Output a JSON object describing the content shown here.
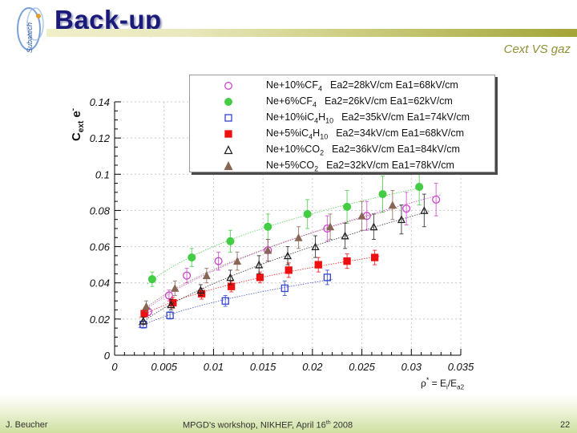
{
  "slide": {
    "title": "Back-up",
    "subtitle": "Cext VS gaz",
    "logo_text": "Subatech",
    "footer_left": "J. Beucher",
    "footer_center": "MPGD's workshop, NIKHEF, April 16",
    "footer_center_sup": "th",
    "footer_center_end": " 2008",
    "page_number": "22"
  },
  "chart_data": {
    "type": "scatter",
    "ylabel_main": "C",
    "ylabel_sub": "ext",
    "ylabel_mid": " e",
    "ylabel_sup": "-",
    "xlabel_rho": "ρ",
    "xlabel_star": "*",
    "xlabel_eq": " = E",
    "xlabel_sub1": "i",
    "xlabel_slash": "/E",
    "xlabel_sub2": "a2",
    "xlim": [
      0,
      0.035
    ],
    "ylim": [
      0,
      0.14
    ],
    "xticks": [
      "0",
      "0.005",
      "0.01",
      "0.015",
      "0.02",
      "0.025",
      "0.03",
      "0.035"
    ],
    "yticks": [
      "0",
      "0.02",
      "0.04",
      "0.06",
      "0.08",
      "0.1",
      "0.12",
      "0.14"
    ],
    "legend_position": "top",
    "series": [
      {
        "name_parts": [
          [
            "Ne+10%CF",
            ""
          ],
          [
            "4",
            "sub"
          ]
        ],
        "fields": "Ea2=28kV/cm   Ea1=68kV/cm",
        "marker": "circle-open",
        "color": "#cc44cc",
        "points": [
          [
            0.0034,
            0.024,
            0.002
          ],
          [
            0.0055,
            0.033,
            0.003
          ],
          [
            0.0073,
            0.044,
            0.004
          ],
          [
            0.0105,
            0.052,
            0.005
          ],
          [
            0.0155,
            0.058,
            0.006
          ],
          [
            0.0215,
            0.07,
            0.007
          ],
          [
            0.0255,
            0.077,
            0.008
          ],
          [
            0.0295,
            0.081,
            0.009
          ],
          [
            0.0325,
            0.086,
            0.009
          ]
        ]
      },
      {
        "name_parts": [
          [
            "Ne+6%CF",
            ""
          ],
          [
            "4",
            "sub"
          ]
        ],
        "fields": "Ea2=26kV/cm   Ea1=62kV/cm",
        "marker": "circle-filled",
        "color": "#44cc44",
        "points": [
          [
            0.0038,
            0.042,
            0.004
          ],
          [
            0.0078,
            0.054,
            0.005
          ],
          [
            0.0117,
            0.063,
            0.006
          ],
          [
            0.0155,
            0.071,
            0.007
          ],
          [
            0.0195,
            0.078,
            0.008
          ],
          [
            0.0235,
            0.082,
            0.009
          ],
          [
            0.0271,
            0.089,
            0.01
          ],
          [
            0.0308,
            0.093,
            0.01
          ]
        ]
      },
      {
        "name_parts": [
          [
            "Ne+10%iC",
            ""
          ],
          [
            "4",
            "sub"
          ],
          [
            "H",
            ""
          ],
          [
            "10",
            "sub"
          ]
        ],
        "fields": "Ea2=35kV/cm   Ea1=74kV/cm",
        "marker": "square-open",
        "color": "#3344cc",
        "points": [
          [
            0.0029,
            0.017,
            0.002
          ],
          [
            0.0056,
            0.022,
            0.002
          ],
          [
            0.0112,
            0.03,
            0.003
          ],
          [
            0.0172,
            0.037,
            0.004
          ],
          [
            0.0215,
            0.043,
            0.004
          ]
        ]
      },
      {
        "name_parts": [
          [
            "Ne+5%iC",
            ""
          ],
          [
            "4",
            "sub"
          ],
          [
            "H",
            ""
          ],
          [
            "10",
            "sub"
          ]
        ],
        "fields": "Ea2=34kV/cm   Ea1=68kV/cm",
        "marker": "square-filled",
        "color": "#ee1111",
        "points": [
          [
            0.003,
            0.023,
            0.002
          ],
          [
            0.0059,
            0.029,
            0.003
          ],
          [
            0.0088,
            0.034,
            0.003
          ],
          [
            0.0118,
            0.038,
            0.003
          ],
          [
            0.0147,
            0.043,
            0.003
          ],
          [
            0.0176,
            0.047,
            0.004
          ],
          [
            0.0206,
            0.05,
            0.004
          ],
          [
            0.0235,
            0.052,
            0.004
          ],
          [
            0.0263,
            0.054,
            0.004
          ]
        ]
      },
      {
        "name_parts": [
          [
            "Ne+10%CO",
            ""
          ],
          [
            "2",
            "sub"
          ]
        ],
        "fields": "Ea2=36kV/cm   Ea1=84kV/cm",
        "marker": "triangle-open",
        "color": "#222222",
        "points": [
          [
            0.0029,
            0.019,
            0.002
          ],
          [
            0.0057,
            0.028,
            0.003
          ],
          [
            0.0087,
            0.036,
            0.003
          ],
          [
            0.0117,
            0.043,
            0.004
          ],
          [
            0.0146,
            0.05,
            0.005
          ],
          [
            0.0175,
            0.055,
            0.005
          ],
          [
            0.0203,
            0.06,
            0.006
          ],
          [
            0.0233,
            0.066,
            0.007
          ],
          [
            0.0262,
            0.071,
            0.007
          ],
          [
            0.029,
            0.075,
            0.008
          ],
          [
            0.0313,
            0.08,
            0.009
          ]
        ]
      },
      {
        "name_parts": [
          [
            "Ne+5%CO",
            ""
          ],
          [
            "2",
            "sub"
          ]
        ],
        "fields": "Ea2=32kV/cm   Ea1=78kV/cm",
        "marker": "triangle-filled",
        "color": "#886655",
        "points": [
          [
            0.0032,
            0.027,
            0.003
          ],
          [
            0.0061,
            0.037,
            0.004
          ],
          [
            0.0093,
            0.044,
            0.004
          ],
          [
            0.0124,
            0.052,
            0.005
          ],
          [
            0.0155,
            0.058,
            0.006
          ],
          [
            0.0186,
            0.065,
            0.006
          ],
          [
            0.0218,
            0.071,
            0.007
          ],
          [
            0.025,
            0.077,
            0.008
          ],
          [
            0.0281,
            0.083,
            0.008
          ]
        ]
      }
    ]
  }
}
